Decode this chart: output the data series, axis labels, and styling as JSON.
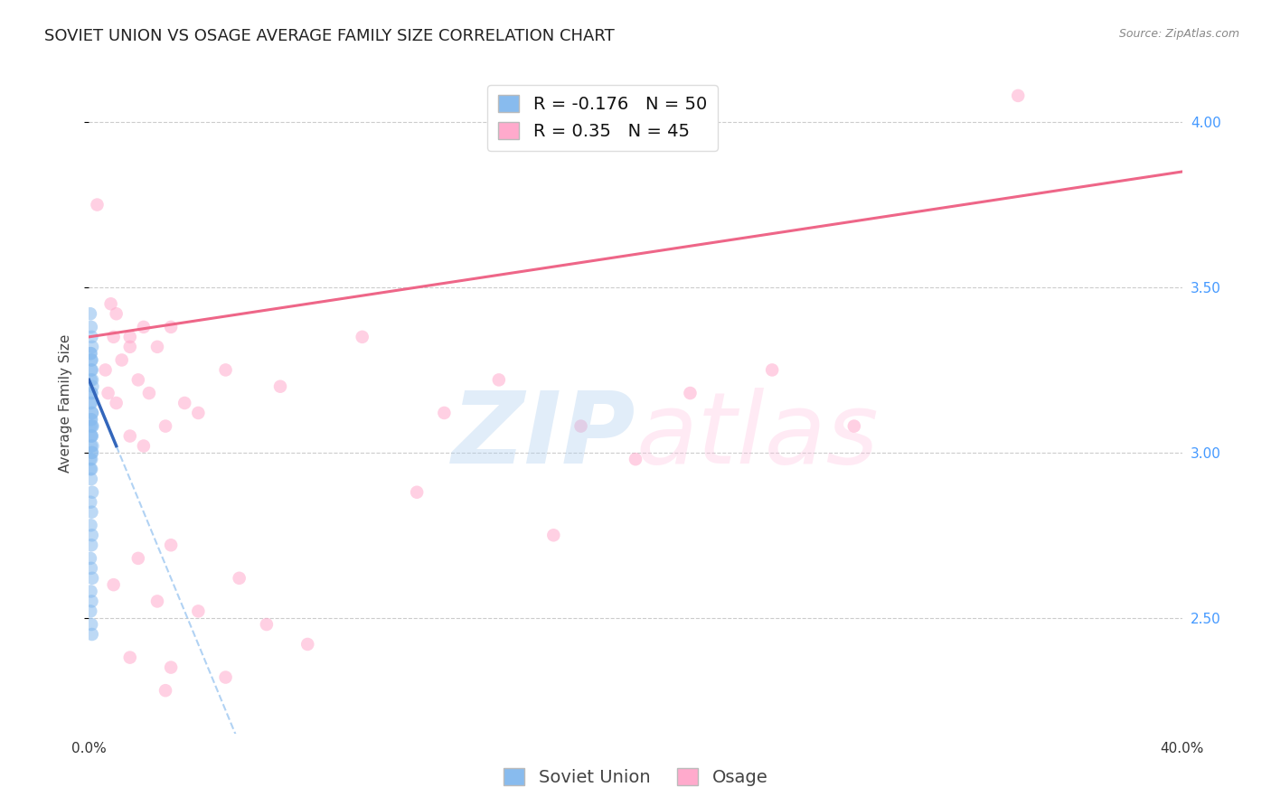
{
  "title": "SOVIET UNION VS OSAGE AVERAGE FAMILY SIZE CORRELATION CHART",
  "source": "Source: ZipAtlas.com",
  "ylabel": "Average Family Size",
  "right_yticks": [
    2.5,
    3.0,
    3.5,
    4.0
  ],
  "xmin": 0.0,
  "xmax": 40.0,
  "ymin": 2.15,
  "ymax": 4.15,
  "R_soviet": -0.176,
  "N_soviet": 50,
  "R_osage": 0.35,
  "N_osage": 45,
  "color_soviet": "#88BBEE",
  "color_osage": "#FFAACC",
  "color_soviet_line": "#3366BB",
  "color_osage_line": "#EE6688",
  "osage_line_start_y": 3.35,
  "osage_line_end_y": 3.85,
  "soviet_line_start_x": 0.0,
  "soviet_line_start_y": 3.22,
  "soviet_line_end_x": 1.0,
  "soviet_line_end_y": 3.02,
  "soviet_dash_end_x": 18.0,
  "grid_color": "#CCCCCC",
  "background_color": "#FFFFFF",
  "title_fontsize": 13,
  "label_fontsize": 11,
  "tick_fontsize": 11,
  "legend_fontsize": 14,
  "dot_size": 110,
  "dot_alpha": 0.55,
  "soviet_dots": [
    [
      0.05,
      3.42
    ],
    [
      0.08,
      3.38
    ],
    [
      0.1,
      3.35
    ],
    [
      0.12,
      3.32
    ],
    [
      0.06,
      3.3
    ],
    [
      0.09,
      3.28
    ],
    [
      0.11,
      3.25
    ],
    [
      0.07,
      3.22
    ],
    [
      0.13,
      3.2
    ],
    [
      0.1,
      3.18
    ],
    [
      0.08,
      3.15
    ],
    [
      0.12,
      3.12
    ],
    [
      0.09,
      3.1
    ],
    [
      0.06,
      3.08
    ],
    [
      0.11,
      3.05
    ],
    [
      0.07,
      3.3
    ],
    [
      0.1,
      3.28
    ],
    [
      0.08,
      3.25
    ],
    [
      0.12,
      3.22
    ],
    [
      0.09,
      3.18
    ],
    [
      0.06,
      3.15
    ],
    [
      0.11,
      3.12
    ],
    [
      0.07,
      3.1
    ],
    [
      0.13,
      3.08
    ],
    [
      0.1,
      3.05
    ],
    [
      0.08,
      3.02
    ],
    [
      0.12,
      3.0
    ],
    [
      0.09,
      2.98
    ],
    [
      0.06,
      2.95
    ],
    [
      0.11,
      3.08
    ],
    [
      0.07,
      3.05
    ],
    [
      0.13,
      3.02
    ],
    [
      0.1,
      3.0
    ],
    [
      0.05,
      2.98
    ],
    [
      0.09,
      2.95
    ],
    [
      0.08,
      2.92
    ],
    [
      0.12,
      2.88
    ],
    [
      0.06,
      2.85
    ],
    [
      0.1,
      2.82
    ],
    [
      0.07,
      2.78
    ],
    [
      0.11,
      2.75
    ],
    [
      0.09,
      2.72
    ],
    [
      0.05,
      2.68
    ],
    [
      0.08,
      2.65
    ],
    [
      0.12,
      2.62
    ],
    [
      0.07,
      2.58
    ],
    [
      0.1,
      2.55
    ],
    [
      0.06,
      2.52
    ],
    [
      0.09,
      2.48
    ],
    [
      0.11,
      2.45
    ]
  ],
  "osage_dots": [
    [
      0.3,
      3.75
    ],
    [
      0.8,
      3.45
    ],
    [
      1.0,
      3.42
    ],
    [
      1.5,
      3.35
    ],
    [
      2.0,
      3.38
    ],
    [
      2.5,
      3.32
    ],
    [
      1.2,
      3.28
    ],
    [
      0.6,
      3.25
    ],
    [
      1.8,
      3.22
    ],
    [
      0.9,
      3.35
    ],
    [
      1.5,
      3.32
    ],
    [
      3.0,
      3.38
    ],
    [
      2.2,
      3.18
    ],
    [
      1.0,
      3.15
    ],
    [
      2.8,
      3.08
    ],
    [
      3.5,
      3.15
    ],
    [
      4.0,
      3.12
    ],
    [
      1.5,
      3.05
    ],
    [
      2.0,
      3.02
    ],
    [
      0.7,
      3.18
    ],
    [
      5.0,
      3.25
    ],
    [
      7.0,
      3.2
    ],
    [
      10.0,
      3.35
    ],
    [
      13.0,
      3.12
    ],
    [
      15.0,
      3.22
    ],
    [
      18.0,
      3.08
    ],
    [
      22.0,
      3.18
    ],
    [
      25.0,
      3.25
    ],
    [
      28.0,
      3.08
    ],
    [
      20.0,
      2.98
    ],
    [
      12.0,
      2.88
    ],
    [
      17.0,
      2.75
    ],
    [
      3.0,
      2.72
    ],
    [
      1.8,
      2.68
    ],
    [
      5.5,
      2.62
    ],
    [
      0.9,
      2.6
    ],
    [
      2.5,
      2.55
    ],
    [
      4.0,
      2.52
    ],
    [
      6.5,
      2.48
    ],
    [
      8.0,
      2.42
    ],
    [
      1.5,
      2.38
    ],
    [
      3.0,
      2.35
    ],
    [
      5.0,
      2.32
    ],
    [
      2.8,
      2.28
    ],
    [
      34.0,
      4.08
    ]
  ],
  "watermark_zip_color": "#AACCEE",
  "watermark_atlas_color": "#FFBBDD"
}
